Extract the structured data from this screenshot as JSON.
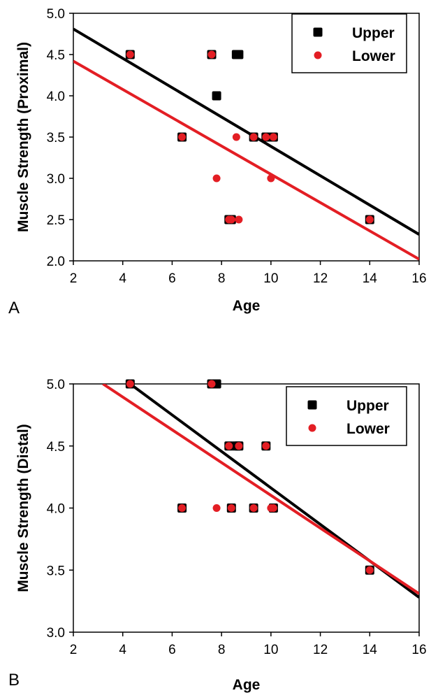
{
  "colors": {
    "upper": "#000000",
    "lower": "#e31e24"
  },
  "chart_data": [
    {
      "type": "scatter",
      "panel_label": "A",
      "xlabel": "Age",
      "ylabel": "Muscle Strength (Proximal)",
      "xlim": [
        2,
        16
      ],
      "ylim": [
        2.0,
        5.0
      ],
      "x_ticks": [
        "2",
        "4",
        "6",
        "8",
        "10",
        "12",
        "14",
        "16"
      ],
      "y_ticks": [
        "2.0",
        "2.5",
        "3.0",
        "3.5",
        "4.0",
        "4.5",
        "5.0"
      ],
      "legend_position": "top-right",
      "grid": false,
      "series": [
        {
          "name": "Upper",
          "marker": "square",
          "points": [
            [
              4.3,
              4.5
            ],
            [
              6.4,
              3.5
            ],
            [
              7.6,
              4.5
            ],
            [
              7.8,
              4.0
            ],
            [
              8.3,
              2.5
            ],
            [
              8.4,
              2.5
            ],
            [
              8.6,
              4.5
            ],
            [
              8.7,
              4.5
            ],
            [
              9.3,
              3.5
            ],
            [
              9.8,
              3.5
            ],
            [
              10.1,
              3.5
            ],
            [
              14.0,
              2.5
            ]
          ],
          "trend": [
            [
              2,
              4.81
            ],
            [
              16,
              2.32
            ]
          ]
        },
        {
          "name": "Lower",
          "marker": "circle",
          "points": [
            [
              4.3,
              4.5
            ],
            [
              6.4,
              3.5
            ],
            [
              7.6,
              4.5
            ],
            [
              7.8,
              3.0
            ],
            [
              8.3,
              2.5
            ],
            [
              8.4,
              2.5
            ],
            [
              8.6,
              3.5
            ],
            [
              8.7,
              2.5
            ],
            [
              9.3,
              3.5
            ],
            [
              9.8,
              3.5
            ],
            [
              10.0,
              3.0
            ],
            [
              10.1,
              3.5
            ],
            [
              14.0,
              2.5
            ]
          ],
          "trend": [
            [
              2,
              4.42
            ],
            [
              16,
              2.02
            ]
          ]
        }
      ]
    },
    {
      "type": "scatter",
      "panel_label": "B",
      "xlabel": "Age",
      "ylabel": "Muscle Strength (Distal)",
      "xlim": [
        2,
        16
      ],
      "ylim": [
        3.0,
        5.0
      ],
      "x_ticks": [
        "2",
        "4",
        "6",
        "8",
        "10",
        "12",
        "14",
        "16"
      ],
      "y_ticks": [
        "3.0",
        "3.5",
        "4.0",
        "4.5",
        "5.0"
      ],
      "legend_position": "top-right",
      "grid": false,
      "series": [
        {
          "name": "Upper",
          "marker": "square",
          "points": [
            [
              4.3,
              5.0
            ],
            [
              6.4,
              4.0
            ],
            [
              7.6,
              5.0
            ],
            [
              7.8,
              5.0
            ],
            [
              8.3,
              4.5
            ],
            [
              8.4,
              4.0
            ],
            [
              8.6,
              4.5
            ],
            [
              8.7,
              4.5
            ],
            [
              9.3,
              4.0
            ],
            [
              9.8,
              4.5
            ],
            [
              10.1,
              4.0
            ],
            [
              14.0,
              3.5
            ]
          ],
          "trend": [
            [
              4.3,
              5.0
            ],
            [
              16,
              3.28
            ]
          ]
        },
        {
          "name": "Lower",
          "marker": "circle",
          "points": [
            [
              4.3,
              5.0
            ],
            [
              6.4,
              4.0
            ],
            [
              7.6,
              5.0
            ],
            [
              7.8,
              4.0
            ],
            [
              8.3,
              4.5
            ],
            [
              8.4,
              4.0
            ],
            [
              8.7,
              4.5
            ],
            [
              9.3,
              4.0
            ],
            [
              9.8,
              4.5
            ],
            [
              10.0,
              4.0
            ],
            [
              10.1,
              4.0
            ],
            [
              14.0,
              3.5
            ]
          ],
          "trend": [
            [
              3.2,
              5.0
            ],
            [
              16,
              3.31
            ]
          ]
        }
      ]
    }
  ]
}
